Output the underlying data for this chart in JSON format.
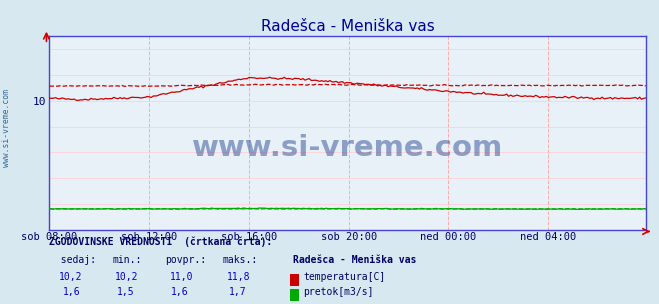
{
  "title": "Radešca - Meniška vas",
  "title_color": "#000099",
  "bg_color": "#d8e8f0",
  "plot_bg_color": "#e8f0f8",
  "grid_color_v": "#ffaaaa",
  "grid_color_h": "#ffcccc",
  "axis_color": "#4444cc",
  "tick_label_color": "#000066",
  "watermark_text": "www.si-vreme.com",
  "watermark_color": "#1a3a8a",
  "left_label": "www.si-vreme.com",
  "x_tick_labels": [
    "sob 08:00",
    "sob 12:00",
    "sob 16:00",
    "sob 20:00",
    "ned 00:00",
    "ned 04:00"
  ],
  "x_tick_positions": [
    0,
    48,
    96,
    144,
    192,
    240
  ],
  "n_points": 288,
  "ylim_min": 0,
  "ylim_max": 15,
  "temp_color": "#cc0000",
  "flow_color": "#00aa00",
  "legend_title": "Radešca - Meniška vas",
  "legend_temp_label": "temperatura[C]",
  "legend_flow_label": "pretok[m3/s]",
  "bottom_label_color": "#000066",
  "bottom_value_color": "#0000cc"
}
